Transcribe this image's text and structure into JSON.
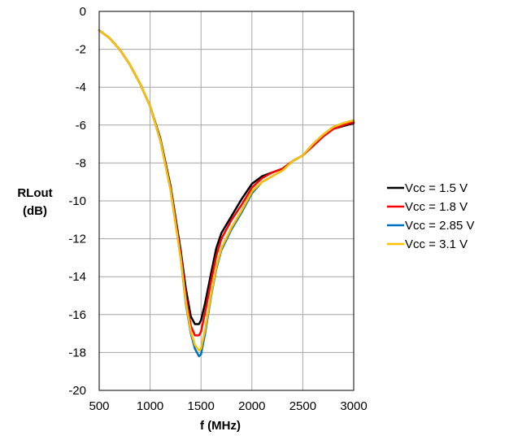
{
  "chart_data": {
    "type": "line",
    "title": "",
    "xlabel": "f (MHz)",
    "ylabel_line1": "RLout",
    "ylabel_line2": "(dB)",
    "xlim": [
      500,
      3000
    ],
    "ylim": [
      -20,
      0
    ],
    "xticks": [
      500,
      1000,
      1500,
      2000,
      2500,
      3000
    ],
    "yticks": [
      0,
      -2,
      -4,
      -6,
      -8,
      -10,
      -12,
      -14,
      -16,
      -18,
      -20
    ],
    "grid": true,
    "legend_position": "right",
    "series": [
      {
        "name": "Vcc = 1.5 V",
        "color": "#000000",
        "points": [
          [
            500,
            -1.0
          ],
          [
            600,
            -1.4
          ],
          [
            700,
            -2.0
          ],
          [
            800,
            -2.8
          ],
          [
            900,
            -3.8
          ],
          [
            1000,
            -5.0
          ],
          [
            1100,
            -6.7
          ],
          [
            1200,
            -9.2
          ],
          [
            1300,
            -12.6
          ],
          [
            1350,
            -14.6
          ],
          [
            1400,
            -16.1
          ],
          [
            1440,
            -16.5
          ],
          [
            1480,
            -16.5
          ],
          [
            1500,
            -16.3
          ],
          [
            1540,
            -15.4
          ],
          [
            1600,
            -13.8
          ],
          [
            1650,
            -12.5
          ],
          [
            1700,
            -11.7
          ],
          [
            1800,
            -10.8
          ],
          [
            1900,
            -9.9
          ],
          [
            2000,
            -9.1
          ],
          [
            2100,
            -8.7
          ],
          [
            2200,
            -8.5
          ],
          [
            2300,
            -8.3
          ],
          [
            2400,
            -7.9
          ],
          [
            2500,
            -7.6
          ],
          [
            2600,
            -7.1
          ],
          [
            2700,
            -6.6
          ],
          [
            2800,
            -6.2
          ],
          [
            2900,
            -6.05
          ],
          [
            3000,
            -5.9
          ]
        ]
      },
      {
        "name": "Vcc = 1.8 V",
        "color": "#ff0000",
        "points": [
          [
            500,
            -1.0
          ],
          [
            600,
            -1.4
          ],
          [
            700,
            -2.0
          ],
          [
            800,
            -2.8
          ],
          [
            900,
            -3.8
          ],
          [
            1000,
            -5.0
          ],
          [
            1100,
            -6.8
          ],
          [
            1200,
            -9.3
          ],
          [
            1300,
            -12.8
          ],
          [
            1350,
            -15.0
          ],
          [
            1400,
            -16.6
          ],
          [
            1440,
            -17.1
          ],
          [
            1480,
            -17.1
          ],
          [
            1500,
            -16.9
          ],
          [
            1540,
            -15.9
          ],
          [
            1600,
            -14.2
          ],
          [
            1650,
            -12.9
          ],
          [
            1700,
            -12.0
          ],
          [
            1800,
            -11.0
          ],
          [
            1900,
            -10.2
          ],
          [
            2000,
            -9.3
          ],
          [
            2100,
            -8.8
          ],
          [
            2200,
            -8.5
          ],
          [
            2300,
            -8.3
          ],
          [
            2400,
            -7.9
          ],
          [
            2500,
            -7.6
          ],
          [
            2600,
            -7.1
          ],
          [
            2700,
            -6.6
          ],
          [
            2800,
            -6.2
          ],
          [
            2900,
            -6.0
          ],
          [
            3000,
            -5.85
          ]
        ]
      },
      {
        "name": "Vcc = 2.85 V",
        "color": "#0070c0",
        "points": [
          [
            500,
            -1.0
          ],
          [
            600,
            -1.4
          ],
          [
            700,
            -2.0
          ],
          [
            800,
            -2.8
          ],
          [
            900,
            -3.8
          ],
          [
            1000,
            -5.0
          ],
          [
            1100,
            -6.8
          ],
          [
            1200,
            -9.4
          ],
          [
            1300,
            -13.0
          ],
          [
            1350,
            -15.4
          ],
          [
            1400,
            -17.0
          ],
          [
            1440,
            -17.8
          ],
          [
            1480,
            -18.2
          ],
          [
            1500,
            -18.1
          ],
          [
            1540,
            -17.0
          ],
          [
            1600,
            -15.0
          ],
          [
            1650,
            -13.6
          ],
          [
            1700,
            -12.6
          ],
          [
            1800,
            -11.5
          ],
          [
            1900,
            -10.6
          ],
          [
            2000,
            -9.6
          ],
          [
            2100,
            -9.0
          ],
          [
            2200,
            -8.7
          ],
          [
            2300,
            -8.4
          ],
          [
            2400,
            -7.9
          ],
          [
            2500,
            -7.6
          ],
          [
            2600,
            -7.0
          ],
          [
            2700,
            -6.5
          ],
          [
            2800,
            -6.1
          ],
          [
            2900,
            -5.9
          ],
          [
            3000,
            -5.75
          ]
        ]
      },
      {
        "name": "Vcc = 3.1 V",
        "color": "#ffc000",
        "points": [
          [
            500,
            -1.0
          ],
          [
            600,
            -1.4
          ],
          [
            700,
            -2.0
          ],
          [
            800,
            -2.8
          ],
          [
            900,
            -3.8
          ],
          [
            1000,
            -5.0
          ],
          [
            1100,
            -6.8
          ],
          [
            1200,
            -9.4
          ],
          [
            1300,
            -13.0
          ],
          [
            1350,
            -15.3
          ],
          [
            1400,
            -16.9
          ],
          [
            1440,
            -17.6
          ],
          [
            1480,
            -17.9
          ],
          [
            1500,
            -17.8
          ],
          [
            1540,
            -16.8
          ],
          [
            1600,
            -14.9
          ],
          [
            1650,
            -13.5
          ],
          [
            1700,
            -12.5
          ],
          [
            1800,
            -11.4
          ],
          [
            1900,
            -10.5
          ],
          [
            2000,
            -9.5
          ],
          [
            2100,
            -9.0
          ],
          [
            2200,
            -8.7
          ],
          [
            2300,
            -8.4
          ],
          [
            2400,
            -7.9
          ],
          [
            2500,
            -7.6
          ],
          [
            2600,
            -7.0
          ],
          [
            2700,
            -6.5
          ],
          [
            2800,
            -6.1
          ],
          [
            2900,
            -5.9
          ],
          [
            3000,
            -5.75
          ]
        ]
      }
    ]
  }
}
